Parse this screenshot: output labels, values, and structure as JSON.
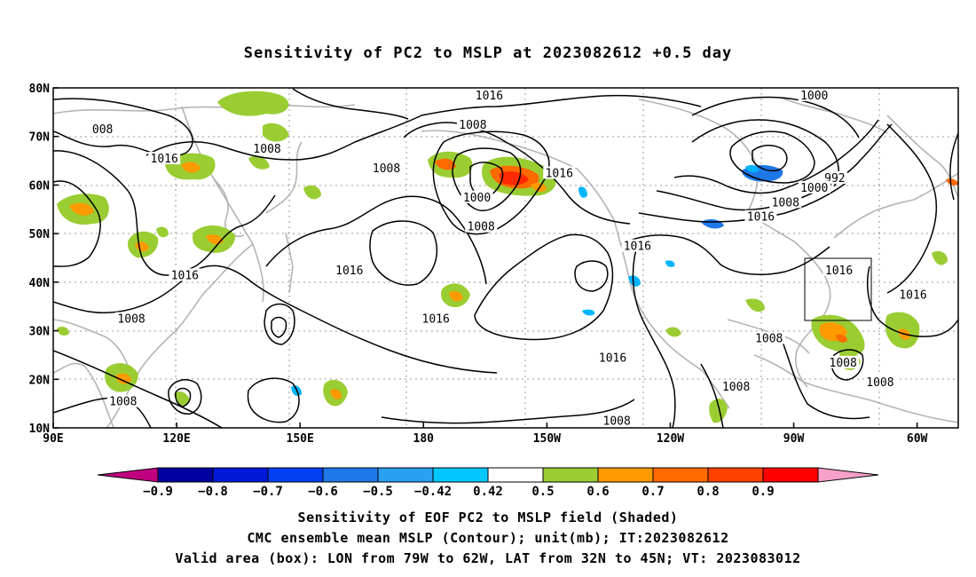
{
  "title": "Sensitivity of PC2 to MSLP at 2023082612 +0.5 day",
  "captions": {
    "line1": "Sensitivity of EOF PC2 to MSLP field (Shaded)",
    "line2": "CMC ensemble mean MSLP (Contour); unit(mb); IT:2023082612",
    "line3": "Valid area (box): LON from 79W to 62W, LAT from 32N to 45N; VT: 2023083012"
  },
  "map": {
    "lon_ticks": [
      "90E",
      "120E",
      "150E",
      "180",
      "150W",
      "120W",
      "90W",
      "60W"
    ],
    "lat_ticks": [
      "80N",
      "70N",
      "60N",
      "50N",
      "40N",
      "30N",
      "20N",
      "10N"
    ],
    "lon_range_deg_east": [
      90,
      310
    ],
    "lat_range_deg": [
      10,
      80
    ],
    "grid": "dotted"
  },
  "valid_box": {
    "lon_west": 79,
    "lon_east": 62,
    "lat_south": 32,
    "lat_north": 45
  },
  "contour_labels": [
    {
      "text": "008",
      "lon": 102,
      "lat": 71
    },
    {
      "text": "1016",
      "lon": 117,
      "lat": 65
    },
    {
      "text": "1008",
      "lon": 142,
      "lat": 67
    },
    {
      "text": "1008",
      "lon": 171,
      "lat": 63
    },
    {
      "text": "1016",
      "lon": 196,
      "lat": 78
    },
    {
      "text": "1008",
      "lon": 192,
      "lat": 72
    },
    {
      "text": "1000",
      "lon": 193,
      "lat": 57
    },
    {
      "text": "1008",
      "lon": 194,
      "lat": 51
    },
    {
      "text": "1016",
      "lon": 213,
      "lat": 62
    },
    {
      "text": "1016",
      "lon": 122,
      "lat": 41
    },
    {
      "text": "1008",
      "lon": 109,
      "lat": 32
    },
    {
      "text": "1008",
      "lon": 107,
      "lat": 15
    },
    {
      "text": "1016",
      "lon": 162,
      "lat": 42
    },
    {
      "text": "1016",
      "lon": 183,
      "lat": 32
    },
    {
      "text": "1016",
      "lon": 226,
      "lat": 24
    },
    {
      "text": "1008",
      "lon": 227,
      "lat": 11
    },
    {
      "text": "1016",
      "lon": 232,
      "lat": 47
    },
    {
      "text": "1008",
      "lon": 264,
      "lat": 28
    },
    {
      "text": "1008",
      "lon": 256,
      "lat": 18
    },
    {
      "text": "1000",
      "lon": 275,
      "lat": 78
    },
    {
      "text": "992",
      "lon": 280,
      "lat": 61
    },
    {
      "text": "1000",
      "lon": 275,
      "lat": 59
    },
    {
      "text": "1008",
      "lon": 268,
      "lat": 56
    },
    {
      "text": "1016",
      "lon": 262,
      "lat": 53
    },
    {
      "text": "1016",
      "lon": 281,
      "lat": 42
    },
    {
      "text": "1016",
      "lon": 299,
      "lat": 37
    },
    {
      "text": "1008",
      "lon": 282,
      "lat": 23
    },
    {
      "text": "1008",
      "lon": 291,
      "lat": 19
    }
  ],
  "colorbar": {
    "labels": [
      "-0.9",
      "-0.8",
      "-0.7",
      "-0.6",
      "-0.5",
      "-0.42",
      "0.42",
      "0.5",
      "0.6",
      "0.7",
      "0.8",
      "0.9"
    ],
    "colors": [
      "#c0007f",
      "#0000a0",
      "#0018d8",
      "#0040f0",
      "#1e78e8",
      "#2aa0f0",
      "#00c8ff",
      "#ffffff",
      "#9acd32",
      "#ff9a00",
      "#ff6a00",
      "#ff4000",
      "#ff0000",
      "#f7a0c8"
    ]
  },
  "shading_colors": {
    "green": "#9acd32",
    "orange": "#ff9a00",
    "dark_orange": "#ff6a00",
    "red": "#ff2a00",
    "light_blue": "#00b4ff",
    "blue": "#1e78e8"
  }
}
